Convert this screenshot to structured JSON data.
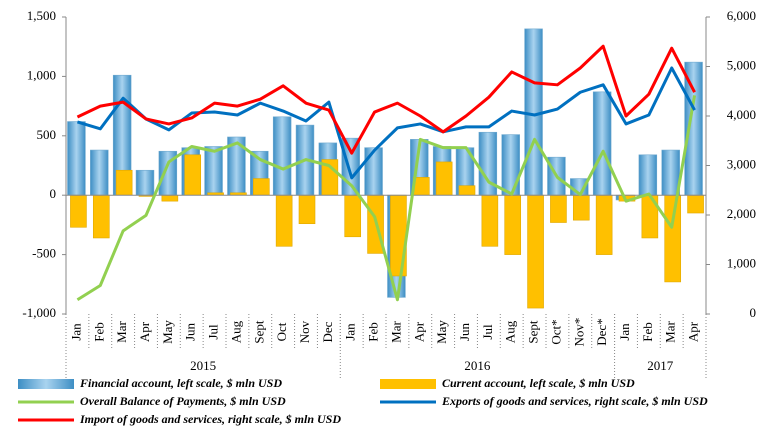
{
  "chart_data": {
    "type": "combo",
    "categories": [
      "Jan",
      "Feb",
      "Mar",
      "Apr",
      "May",
      "Jun",
      "Jul",
      "Aug",
      "Sept",
      "Oct",
      "Nov",
      "Dec",
      "Jan",
      "Feb",
      "Mar",
      "Apr",
      "May",
      "Jun",
      "Jul",
      "Aug",
      "Sept",
      "Oct*",
      "Nov*",
      "Dec*",
      "Jan",
      "Feb",
      "Mar",
      "Apr"
    ],
    "x_groups": [
      {
        "label": "2015",
        "span": [
          0,
          11
        ]
      },
      {
        "label": "2016",
        "span": [
          12,
          23
        ]
      },
      {
        "label": "2017",
        "span": [
          24,
          27
        ]
      }
    ],
    "ylim": [
      -1000,
      1500
    ],
    "yticks": [
      {
        "value": -1000,
        "label": "-1,000"
      },
      -500,
      0,
      500,
      {
        "value": 1000,
        "label": "1,000"
      },
      {
        "value": 1500,
        "label": "1,500"
      }
    ],
    "y2lim": [
      0,
      6000
    ],
    "y2ticks": [
      0,
      {
        "value": 1000,
        "label": "1,000"
      },
      {
        "value": 2000,
        "label": "2,000"
      },
      {
        "value": 3000,
        "label": "3,000"
      },
      {
        "value": 4000,
        "label": "4,000"
      },
      {
        "value": 5000,
        "label": "5,000"
      },
      {
        "value": 6000,
        "label": "6,000"
      }
    ],
    "series": [
      {
        "name": "Financial account, left scale, $ mln USD",
        "type": "bar",
        "color": "#5ba3d0",
        "values": [
          620,
          380,
          1010,
          210,
          370,
          400,
          410,
          490,
          370,
          660,
          590,
          440,
          480,
          400,
          -860,
          470,
          410,
          400,
          530,
          510,
          1400,
          320,
          140,
          870,
          -40,
          340,
          380,
          1120
        ]
      },
      {
        "name": "Current account, left scale, $ mln USD",
        "type": "bar",
        "color": "#ffc000",
        "values": [
          -270,
          -360,
          210,
          -10,
          -50,
          340,
          20,
          20,
          140,
          -430,
          -240,
          300,
          -350,
          -490,
          -680,
          150,
          280,
          80,
          -430,
          -500,
          -950,
          -230,
          -210,
          -500,
          -50,
          -360,
          -730,
          -150
        ]
      },
      {
        "name": "Overall Balance of Payments, $ mln USD",
        "type": "line",
        "color": "#92d050",
        "values": [
          -880,
          -760,
          -300,
          -170,
          280,
          410,
          370,
          440,
          300,
          220,
          300,
          250,
          80,
          -180,
          -880,
          470,
          400,
          400,
          110,
          10,
          470,
          150,
          5,
          370,
          -50,
          10,
          -270,
          840
        ]
      },
      {
        "name": "Exports of goods and services, right scale, $ mln USD",
        "type": "line",
        "color": "#0070c0",
        "axis": "y2",
        "values": [
          3880,
          3740,
          4360,
          3940,
          3720,
          4060,
          4080,
          4020,
          4260,
          4100,
          3900,
          4280,
          2750,
          3310,
          3760,
          3840,
          3680,
          3780,
          3780,
          4100,
          4020,
          4140,
          4480,
          4630,
          3840,
          4020,
          4970,
          4120
        ]
      },
      {
        "name": "Import of goods and services, right scale, $ mln USD",
        "type": "line",
        "color": "#ff0000",
        "axis": "y2",
        "values": [
          3980,
          4200,
          4280,
          3940,
          3840,
          3960,
          4260,
          4200,
          4340,
          4610,
          4260,
          4120,
          3250,
          4080,
          4260,
          4000,
          3680,
          4000,
          4380,
          4890,
          4670,
          4630,
          4970,
          5410,
          4000,
          4440,
          5370,
          4480
        ]
      }
    ]
  }
}
